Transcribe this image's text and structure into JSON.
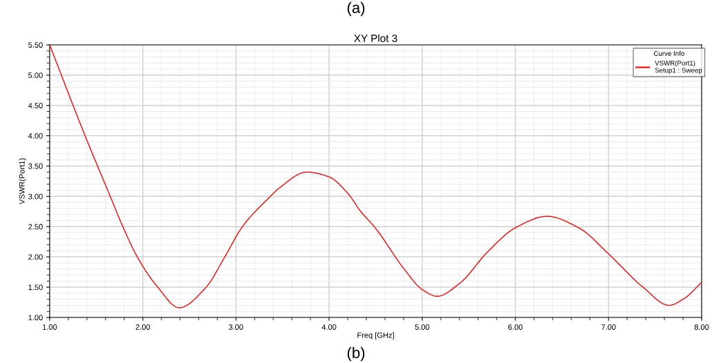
{
  "chart_data": {
    "type": "line",
    "title": "XY Plot 3",
    "xlabel": "Freq [GHz]",
    "ylabel": "VSWR(Port1)",
    "legend_title": "Curve Info",
    "annotations": [
      "(a)",
      "(b)"
    ],
    "x": [
      1.0,
      1.38,
      1.65,
      1.785,
      1.94,
      2.16,
      2.39,
      2.68,
      2.88,
      3.07,
      3.37,
      3.46,
      3.76,
      4.0,
      4.2,
      4.34,
      4.5,
      4.8,
      5.0,
      5.16,
      5.4,
      5.7,
      6.0,
      6.34,
      6.69,
      7.0,
      7.37,
      7.65,
      7.81,
      8.0
    ],
    "series": [
      {
        "name": "VSWR(Port1)\nSetup1 : Sweep",
        "color": "#ff0000",
        "values": [
          5.5,
          4.0,
          3.0,
          2.5,
          2.0,
          1.5,
          1.16,
          1.5,
          2.0,
          2.5,
          3.0,
          3.13,
          3.4,
          3.32,
          3.05,
          2.75,
          2.47,
          1.81,
          1.46,
          1.35,
          1.56,
          2.08,
          2.48,
          2.67,
          2.47,
          2.05,
          1.5,
          1.2,
          1.31,
          1.58
        ]
      }
    ],
    "xlim": [
      1.0,
      8.0
    ],
    "ylim": [
      1.0,
      5.5
    ],
    "xticks": [
      {
        "value": 1,
        "label": "1.00"
      },
      {
        "value": 2,
        "label": "2.00"
      },
      {
        "value": 3,
        "label": "3.00"
      },
      {
        "value": 4,
        "label": "4.00"
      },
      {
        "value": 5,
        "label": "5.00"
      },
      {
        "value": 6,
        "label": "6.00"
      },
      {
        "value": 7,
        "label": "7.00"
      },
      {
        "value": 8,
        "label": "8.00"
      }
    ],
    "yticks": [
      {
        "value": 1,
        "label": "1.00"
      },
      {
        "value": 1.5,
        "label": "1.50"
      },
      {
        "value": 2,
        "label": "2.00"
      },
      {
        "value": 2.5,
        "label": "2.50"
      },
      {
        "value": 3,
        "label": "3.00"
      },
      {
        "value": 3.5,
        "label": "3.50"
      },
      {
        "value": 4,
        "label": "4.00"
      },
      {
        "value": 4.5,
        "label": "4.50"
      },
      {
        "value": 5,
        "label": "5.00"
      },
      {
        "value": 5.5,
        "label": "5.50"
      }
    ],
    "grid": true,
    "legend": "top right",
    "marker": "none",
    "line_style": "solid"
  }
}
